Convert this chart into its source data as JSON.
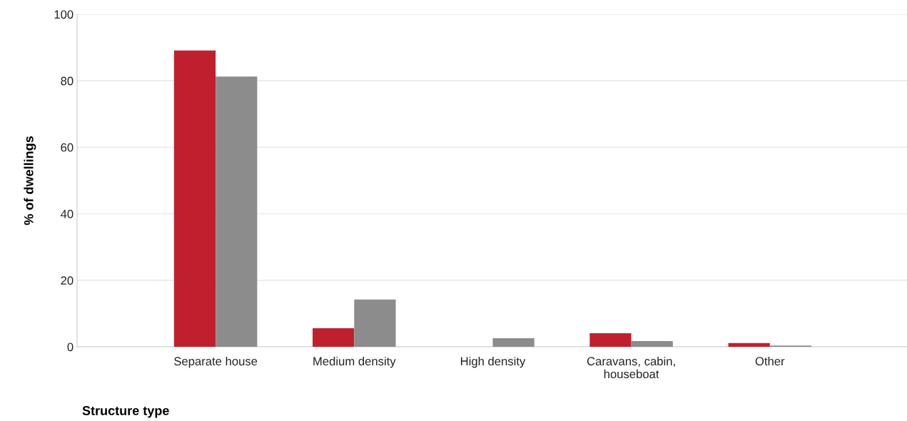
{
  "chart_data": {
    "type": "bar",
    "xlabel": "Structure type",
    "ylabel": "% of dwellings",
    "categories": [
      "Separate house",
      "Medium density",
      "High density",
      "Caravans, cabin,\nhouseboat",
      "Other"
    ],
    "series": [
      {
        "color": "#c0202e",
        "values": [
          89.1,
          5.6,
          0,
          4.1,
          1.1
        ]
      },
      {
        "color": "#8c8c8c",
        "values": [
          81.3,
          14.2,
          2.6,
          1.7,
          0.4
        ]
      }
    ],
    "ylim": [
      0,
      100
    ],
    "yticks": [
      0,
      20,
      40,
      60,
      80,
      100
    ],
    "grid": "y",
    "legend": false
  }
}
